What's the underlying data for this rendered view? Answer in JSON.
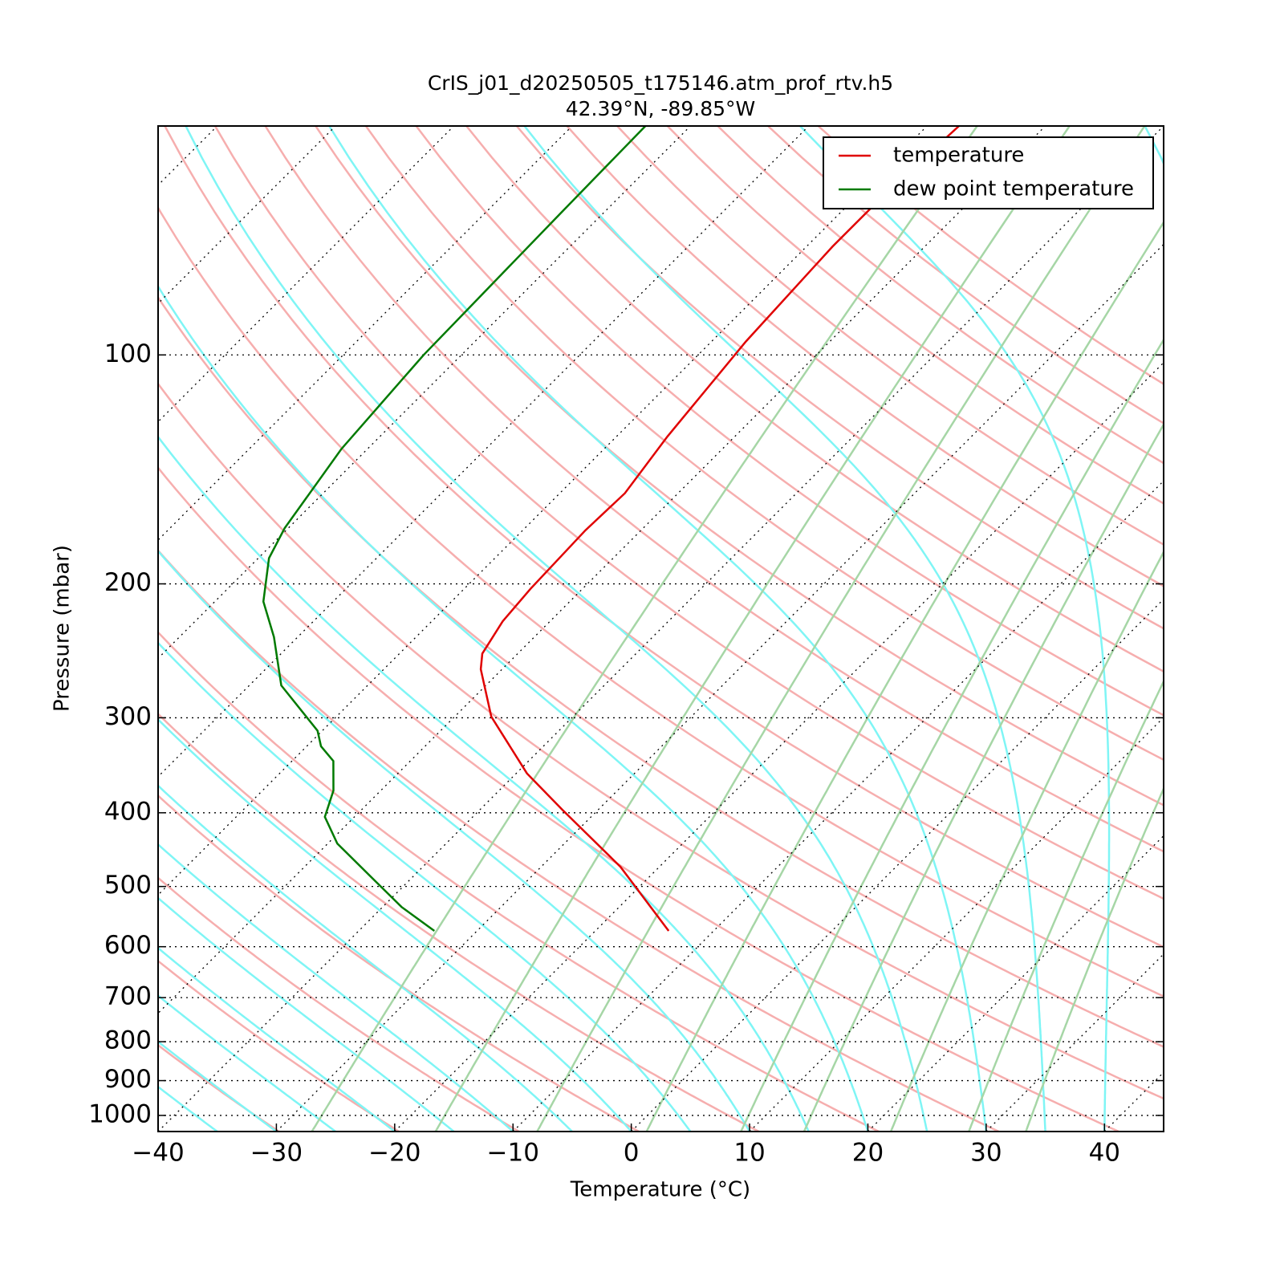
{
  "chart_data": {
    "type": "skewt",
    "title": "CrIS_j01_d20250505_t175146.atm_prof_rtv.h5",
    "subtitle": "42.39°N, -89.85°W",
    "x_label": "Temperature (°C)",
    "y_label": "Pressure (mbar)",
    "xlim": [
      -40,
      45
    ],
    "ylim": [
      1050,
      50
    ],
    "log_scale_y": true,
    "xticks": [
      {
        "value": -40,
        "label": "−40"
      },
      {
        "value": -30,
        "label": "−30"
      },
      {
        "value": -20,
        "label": "−20"
      },
      {
        "value": -10,
        "label": "−10"
      },
      0,
      10,
      20,
      30,
      40
    ],
    "yticks": [
      100,
      200,
      300,
      400,
      500,
      600,
      700,
      800,
      900,
      1000
    ],
    "grid": true,
    "legend": "upper right",
    "series": [
      {
        "name": "temperature",
        "color": "#e00000",
        "pressure": [
          572,
          471,
          398,
          355,
          299,
          259,
          247,
          224,
          203,
          170,
          152,
          128,
          96,
          72,
          61,
          50
        ],
        "values": [
          -13.8,
          -23.3,
          -32.8,
          -39.1,
          -46.9,
          -51.8,
          -53.0,
          -54.0,
          -54.4,
          -54.7,
          -54.5,
          -55.7,
          -57.1,
          -57.8,
          -57.8,
          -57.3
        ]
      },
      {
        "name": "dew point temperature",
        "color": "#007a00",
        "pressure": [
          572,
          532,
          492,
          439,
          405,
          374,
          342,
          327,
          312,
          272,
          235,
          211,
          185,
          169,
          133,
          100,
          65,
          50
        ],
        "values": [
          -33.6,
          -38.4,
          -42.8,
          -49.2,
          -52.5,
          -54.0,
          -56.5,
          -58.8,
          -60.4,
          -67.3,
          -72.0,
          -75.9,
          -79.1,
          -80.3,
          -82.2,
          -83.2,
          -83.6,
          -83.8
        ]
      }
    ]
  }
}
